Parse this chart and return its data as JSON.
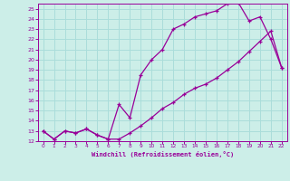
{
  "xlabel": "Windchill (Refroidissement éolien,°C)",
  "bg_color": "#cceee8",
  "grid_color": "#aaddda",
  "line_color": "#990099",
  "xlim": [
    -0.5,
    22.5
  ],
  "ylim": [
    12,
    25.5
  ],
  "xticks": [
    0,
    1,
    2,
    3,
    4,
    5,
    6,
    7,
    8,
    9,
    10,
    11,
    12,
    13,
    14,
    15,
    16,
    17,
    18,
    19,
    20,
    21,
    22
  ],
  "yticks": [
    12,
    13,
    14,
    15,
    16,
    17,
    18,
    19,
    20,
    21,
    22,
    23,
    24,
    25
  ],
  "upper_x": [
    0,
    1,
    2,
    3,
    4,
    5,
    6,
    7,
    8,
    9,
    10,
    11,
    12,
    13,
    14,
    15,
    16,
    17,
    18,
    19,
    20,
    21,
    22
  ],
  "upper_y": [
    13.0,
    12.2,
    13.0,
    12.8,
    13.2,
    12.6,
    12.2,
    15.6,
    14.3,
    18.5,
    20.0,
    21.0,
    23.0,
    23.5,
    24.2,
    24.5,
    24.8,
    25.5,
    25.6,
    23.8,
    24.2,
    22.0,
    19.2
  ],
  "lower_x": [
    0,
    1,
    2,
    3,
    4,
    5,
    6,
    7,
    8,
    9,
    10,
    11,
    12,
    13,
    14,
    15,
    16,
    17,
    18,
    19,
    20,
    21,
    22
  ],
  "lower_y": [
    13.0,
    12.2,
    13.0,
    12.8,
    13.2,
    12.6,
    12.2,
    12.2,
    12.8,
    13.5,
    14.3,
    15.2,
    15.8,
    16.6,
    17.2,
    17.6,
    18.2,
    19.0,
    19.8,
    20.8,
    21.8,
    22.8,
    19.2
  ]
}
